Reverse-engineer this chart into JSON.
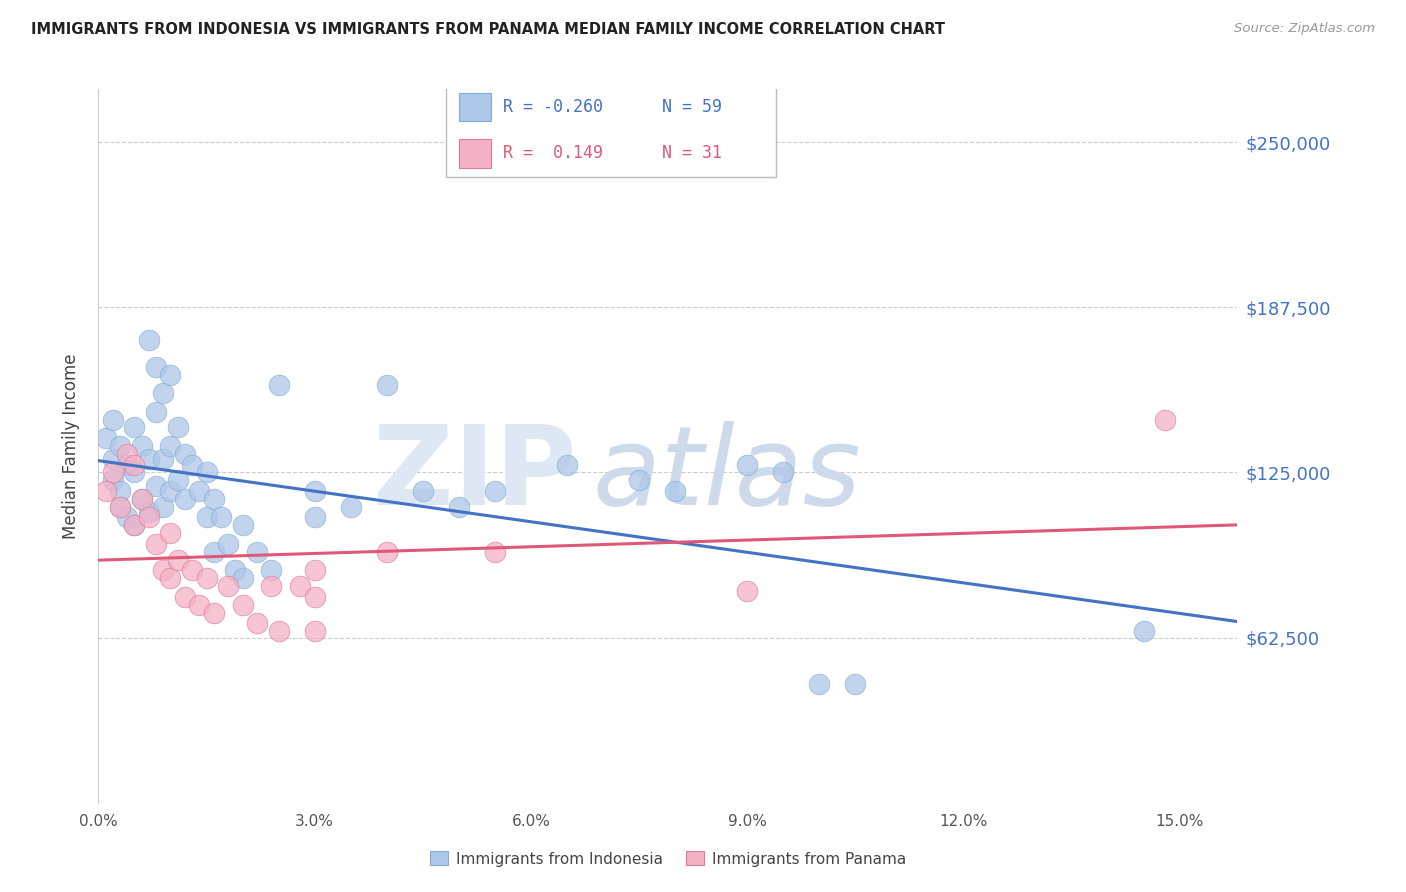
{
  "title": "IMMIGRANTS FROM INDONESIA VS IMMIGRANTS FROM PANAMA MEDIAN FAMILY INCOME CORRELATION CHART",
  "source": "Source: ZipAtlas.com",
  "ylabel": "Median Family Income",
  "yticks": [
    0,
    62500,
    125000,
    187500,
    250000
  ],
  "ytick_labels": [
    "",
    "$62,500",
    "$125,000",
    "$187,500",
    "$250,000"
  ],
  "xticks": [
    0.0,
    0.03,
    0.06,
    0.09,
    0.12,
    0.15
  ],
  "xtick_labels": [
    "0.0%",
    "3.0%",
    "6.0%",
    "9.0%",
    "12.0%",
    "15.0%"
  ],
  "xlim": [
    0.0,
    0.158
  ],
  "ylim": [
    0,
    270000
  ],
  "indonesia_color": "#aec6e8",
  "indonesia_edge_color": "#7fafd4",
  "panama_color": "#f4b0c4",
  "panama_edge_color": "#e07a98",
  "indonesia_line_color": "#4472c4",
  "panama_line_color": "#e05878",
  "background_color": "#ffffff",
  "grid_color": "#cccccc",
  "axis_label_color": "#4472c4",
  "title_color": "#222222",
  "source_color": "#999999",
  "legend_r1": "R = -0.260",
  "legend_n1": "N = 59",
  "legend_r2": "R =  0.149",
  "legend_n2": "N = 31",
  "indonesia_points": [
    [
      0.001,
      138000
    ],
    [
      0.002,
      145000
    ],
    [
      0.002,
      130000
    ],
    [
      0.002,
      122000
    ],
    [
      0.003,
      135000
    ],
    [
      0.003,
      118000
    ],
    [
      0.003,
      112000
    ],
    [
      0.004,
      128000
    ],
    [
      0.004,
      108000
    ],
    [
      0.005,
      142000
    ],
    [
      0.005,
      125000
    ],
    [
      0.005,
      105000
    ],
    [
      0.006,
      135000
    ],
    [
      0.006,
      115000
    ],
    [
      0.007,
      175000
    ],
    [
      0.007,
      130000
    ],
    [
      0.007,
      110000
    ],
    [
      0.008,
      165000
    ],
    [
      0.008,
      148000
    ],
    [
      0.008,
      120000
    ],
    [
      0.009,
      155000
    ],
    [
      0.009,
      130000
    ],
    [
      0.009,
      112000
    ],
    [
      0.01,
      162000
    ],
    [
      0.01,
      135000
    ],
    [
      0.01,
      118000
    ],
    [
      0.011,
      142000
    ],
    [
      0.011,
      122000
    ],
    [
      0.012,
      132000
    ],
    [
      0.012,
      115000
    ],
    [
      0.013,
      128000
    ],
    [
      0.014,
      118000
    ],
    [
      0.015,
      125000
    ],
    [
      0.015,
      108000
    ],
    [
      0.016,
      115000
    ],
    [
      0.016,
      95000
    ],
    [
      0.017,
      108000
    ],
    [
      0.018,
      98000
    ],
    [
      0.019,
      88000
    ],
    [
      0.02,
      105000
    ],
    [
      0.02,
      85000
    ],
    [
      0.022,
      95000
    ],
    [
      0.024,
      88000
    ],
    [
      0.025,
      158000
    ],
    [
      0.03,
      118000
    ],
    [
      0.03,
      108000
    ],
    [
      0.035,
      112000
    ],
    [
      0.04,
      158000
    ],
    [
      0.045,
      118000
    ],
    [
      0.05,
      112000
    ],
    [
      0.055,
      118000
    ],
    [
      0.065,
      128000
    ],
    [
      0.075,
      122000
    ],
    [
      0.08,
      118000
    ],
    [
      0.09,
      128000
    ],
    [
      0.095,
      125000
    ],
    [
      0.1,
      45000
    ],
    [
      0.105,
      45000
    ],
    [
      0.145,
      65000
    ]
  ],
  "panama_points": [
    [
      0.001,
      118000
    ],
    [
      0.002,
      125000
    ],
    [
      0.003,
      112000
    ],
    [
      0.004,
      132000
    ],
    [
      0.005,
      128000
    ],
    [
      0.005,
      105000
    ],
    [
      0.006,
      115000
    ],
    [
      0.007,
      108000
    ],
    [
      0.008,
      98000
    ],
    [
      0.009,
      88000
    ],
    [
      0.01,
      102000
    ],
    [
      0.01,
      85000
    ],
    [
      0.011,
      92000
    ],
    [
      0.012,
      78000
    ],
    [
      0.013,
      88000
    ],
    [
      0.014,
      75000
    ],
    [
      0.015,
      85000
    ],
    [
      0.016,
      72000
    ],
    [
      0.018,
      82000
    ],
    [
      0.02,
      75000
    ],
    [
      0.022,
      68000
    ],
    [
      0.024,
      82000
    ],
    [
      0.025,
      65000
    ],
    [
      0.028,
      82000
    ],
    [
      0.03,
      78000
    ],
    [
      0.03,
      65000
    ],
    [
      0.03,
      88000
    ],
    [
      0.04,
      95000
    ],
    [
      0.055,
      95000
    ],
    [
      0.09,
      80000
    ],
    [
      0.148,
      145000
    ]
  ]
}
